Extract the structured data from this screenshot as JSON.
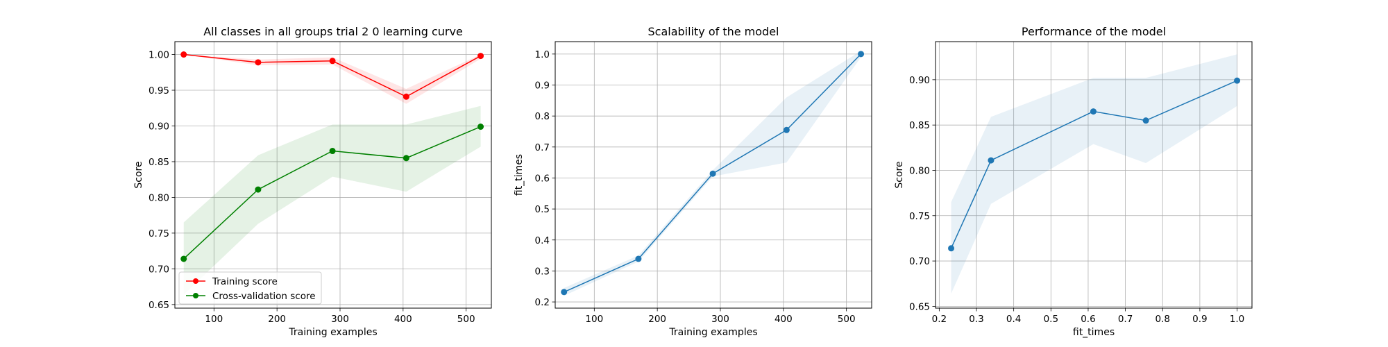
{
  "chart_data": [
    {
      "type": "line",
      "title": "All classes in all groups trial 2 0 learning curve",
      "xlabel": "Training examples",
      "ylabel": "Score",
      "xlim": [
        38,
        540
      ],
      "ylim": [
        0.645,
        1.018
      ],
      "xticks": [
        100,
        200,
        300,
        400,
        500
      ],
      "yticks": [
        0.65,
        0.7,
        0.75,
        0.8,
        0.85,
        0.9,
        0.95,
        1.0
      ],
      "ytick_labels": [
        "0.65",
        "0.70",
        "0.75",
        "0.80",
        "0.85",
        "0.90",
        "0.95",
        "1.00"
      ],
      "grid": true,
      "legend": {
        "location": "lower left",
        "entries": [
          "Training score",
          "Cross-validation score"
        ]
      },
      "series": [
        {
          "name": "Training score",
          "color": "#ff0000",
          "x": [
            52,
            170,
            288,
            405,
            523
          ],
          "y": [
            1.0,
            0.989,
            0.991,
            0.941,
            0.998
          ],
          "band_lower": [
            1.0,
            0.985,
            0.986,
            0.931,
            0.994
          ],
          "band_upper": [
            1.0,
            0.993,
            0.996,
            0.952,
            1.0
          ]
        },
        {
          "name": "Cross-validation score",
          "color": "#008000",
          "x": [
            52,
            170,
            288,
            405,
            523
          ],
          "y": [
            0.714,
            0.811,
            0.865,
            0.855,
            0.899
          ],
          "band_lower": [
            0.664,
            0.763,
            0.829,
            0.808,
            0.871
          ],
          "band_upper": [
            0.765,
            0.859,
            0.902,
            0.902,
            0.928
          ]
        }
      ]
    },
    {
      "type": "line",
      "title": "Scalability of the model",
      "xlabel": "Training examples",
      "ylabel": "fit_times",
      "xlim": [
        38,
        540
      ],
      "ylim": [
        0.18,
        1.04
      ],
      "xticks": [
        100,
        200,
        300,
        400,
        500
      ],
      "yticks": [
        0.2,
        0.3,
        0.4,
        0.5,
        0.6,
        0.7,
        0.8,
        0.9,
        1.0
      ],
      "ytick_labels": [
        "0.2",
        "0.3",
        "0.4",
        "0.5",
        "0.6",
        "0.7",
        "0.8",
        "0.9",
        "1.0"
      ],
      "grid": true,
      "series": [
        {
          "color": "#1f77b4",
          "x": [
            52,
            170,
            288,
            405,
            523
          ],
          "y": [
            0.232,
            0.339,
            0.614,
            0.755,
            1.0
          ],
          "band_lower": [
            0.22,
            0.33,
            0.605,
            0.65,
            0.99
          ],
          "band_upper": [
            0.245,
            0.35,
            0.625,
            0.86,
            1.01
          ]
        }
      ]
    },
    {
      "type": "line",
      "title": "Performance of the model",
      "xlabel": "fit_times",
      "ylabel": "Score",
      "xlim": [
        0.19,
        1.04
      ],
      "ylim": [
        0.648,
        0.942
      ],
      "xticks": [
        0.2,
        0.3,
        0.4,
        0.5,
        0.6,
        0.7,
        0.8,
        0.9,
        1.0
      ],
      "xtick_labels": [
        "0.2",
        "0.3",
        "0.4",
        "0.5",
        "0.6",
        "0.7",
        "0.8",
        "0.9",
        "1.0"
      ],
      "yticks": [
        0.65,
        0.7,
        0.75,
        0.8,
        0.85,
        0.9
      ],
      "ytick_labels": [
        "0.65",
        "0.70",
        "0.75",
        "0.80",
        "0.85",
        "0.90"
      ],
      "grid": true,
      "series": [
        {
          "color": "#1f77b4",
          "x": [
            0.232,
            0.339,
            0.614,
            0.755,
            1.0
          ],
          "y": [
            0.714,
            0.811,
            0.865,
            0.855,
            0.899
          ],
          "band_lower": [
            0.664,
            0.763,
            0.829,
            0.808,
            0.871
          ],
          "band_upper": [
            0.765,
            0.859,
            0.902,
            0.902,
            0.928
          ]
        }
      ]
    }
  ]
}
